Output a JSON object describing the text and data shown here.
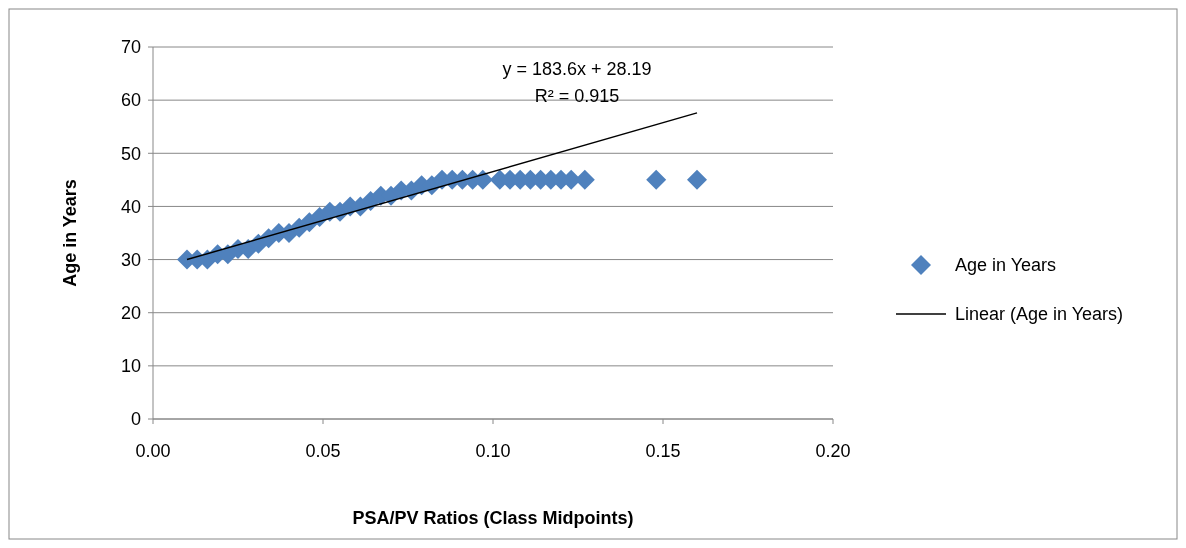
{
  "chart_data": {
    "type": "scatter",
    "xlabel": "PSA/PV Ratios (Class Midpoints)",
    "ylabel": "Age in Years",
    "xlim": [
      0,
      0.2
    ],
    "xticks": [
      {
        "value": 0,
        "label": "0.00"
      },
      {
        "value": 0.05,
        "label": "0.05"
      },
      {
        "value": 0.1,
        "label": "0.10"
      },
      {
        "value": 0.15,
        "label": "0.15"
      },
      {
        "value": 0.2,
        "label": "0.20"
      }
    ],
    "ylim": [
      0,
      70
    ],
    "yticks": [
      0,
      10,
      20,
      30,
      40,
      50,
      60,
      70
    ],
    "grid": "y",
    "legend": "right",
    "annotations": [
      "y = 183.6x + 28.19",
      "R² = 0.915"
    ],
    "series": [
      {
        "name": "Age in Years",
        "marker": "diamond",
        "color": "#4f81bd",
        "x": [
          0.01,
          0.013,
          0.016,
          0.019,
          0.022,
          0.025,
          0.028,
          0.031,
          0.034,
          0.037,
          0.04,
          0.043,
          0.046,
          0.049,
          0.052,
          0.055,
          0.058,
          0.061,
          0.064,
          0.067,
          0.07,
          0.073,
          0.076,
          0.079,
          0.082,
          0.085,
          0.088,
          0.091,
          0.094,
          0.097,
          0.102,
          0.105,
          0.108,
          0.111,
          0.114,
          0.117,
          0.12,
          0.123,
          0.127,
          0.148,
          0.16
        ],
        "values": [
          30,
          30,
          30,
          31,
          31,
          32,
          32,
          33,
          34,
          35,
          35,
          36,
          37,
          38,
          39,
          39,
          40,
          40,
          41,
          42,
          42,
          43,
          43,
          44,
          44,
          45,
          45,
          45,
          45,
          45,
          45,
          45,
          45,
          45,
          45,
          45,
          45,
          45,
          45,
          45,
          45
        ]
      },
      {
        "name": "Linear (Age in Years)",
        "type": "line",
        "marker": "none",
        "color": "#000000",
        "x": [
          0.01,
          0.16
        ],
        "values": [
          30.0,
          57.6
        ]
      }
    ]
  }
}
